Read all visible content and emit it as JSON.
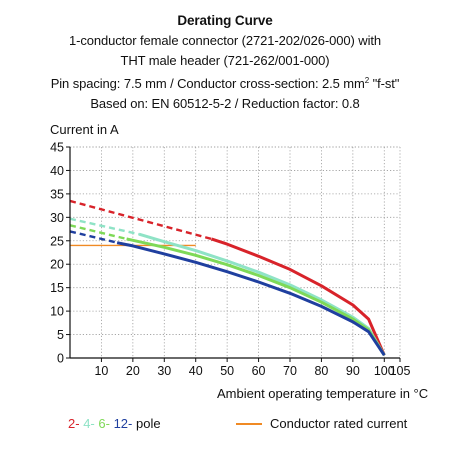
{
  "header": {
    "title": "Derating Curve",
    "line1": "1-conductor female connector (2721-202/026-000) with",
    "line2": "THT male header (721-262/001-000)",
    "line3_pre": "Pin spacing: 7.5 mm / Conductor cross-section: 2.5 mm",
    "line3_sup": "2",
    "line3_post": " \"f-st\"",
    "line4": "Based on: EN 60512-5-2 / Reduction factor: 0.8"
  },
  "legend": {
    "pole_items": [
      {
        "text": "2-",
        "color": "#d8232a"
      },
      {
        "text": "4-",
        "color": "#8fe3c6"
      },
      {
        "text": "6-",
        "color": "#7ed957"
      },
      {
        "text": "12-",
        "color": "#1f3f9f"
      }
    ],
    "pole_suffix": "pole",
    "rated_label": "Conductor rated current",
    "rated_color": "#f08a24"
  },
  "chart_data": {
    "type": "line",
    "xlabel": "Ambient operating temperature in °C",
    "ylabel": "Current in A",
    "xlim": [
      0,
      105
    ],
    "ylim": [
      0,
      45
    ],
    "xticks": [
      10,
      20,
      30,
      40,
      50,
      60,
      70,
      80,
      90,
      100,
      105
    ],
    "yticks": [
      0,
      5,
      10,
      15,
      20,
      25,
      30,
      35,
      40,
      45
    ],
    "grid": true,
    "rated_current": {
      "value": 24,
      "x_range": [
        0,
        40
      ]
    },
    "series": [
      {
        "name": "2-pole",
        "color": "#d8232a",
        "dashed": {
          "x": [
            0,
            45
          ],
          "y": [
            33.5,
            25.4
          ]
        },
        "solid": {
          "x": [
            45,
            50,
            60,
            70,
            80,
            90,
            95,
            100
          ],
          "y": [
            25.4,
            24.3,
            21.7,
            18.9,
            15.4,
            11.3,
            8.3,
            0.6
          ]
        }
      },
      {
        "name": "4-pole",
        "color": "#8fe3c6",
        "dashed": {
          "x": [
            0,
            22
          ],
          "y": [
            29.7,
            26.4
          ]
        },
        "solid": {
          "x": [
            22,
            30,
            40,
            50,
            60,
            70,
            80,
            90,
            95,
            100
          ],
          "y": [
            26.4,
            24.8,
            22.9,
            20.7,
            18.3,
            15.6,
            12.4,
            8.7,
            6.3,
            0.6
          ]
        }
      },
      {
        "name": "6-pole",
        "color": "#7ed957",
        "dashed": {
          "x": [
            0,
            18
          ],
          "y": [
            28.3,
            25.4
          ]
        },
        "solid": {
          "x": [
            18,
            30,
            40,
            50,
            60,
            70,
            80,
            90,
            95,
            100
          ],
          "y": [
            25.4,
            23.6,
            21.9,
            19.9,
            17.6,
            15.0,
            11.9,
            8.3,
            6.0,
            0.6
          ]
        }
      },
      {
        "name": "12-pole",
        "color": "#1f3f9f",
        "dashed": {
          "x": [
            0,
            15
          ],
          "y": [
            27.0,
            24.6
          ]
        },
        "solid": {
          "x": [
            15,
            20,
            30,
            40,
            50,
            60,
            70,
            80,
            90,
            95,
            100
          ],
          "y": [
            24.6,
            23.9,
            22.2,
            20.4,
            18.4,
            16.2,
            13.8,
            11.0,
            7.7,
            5.6,
            0.6
          ]
        }
      }
    ]
  }
}
